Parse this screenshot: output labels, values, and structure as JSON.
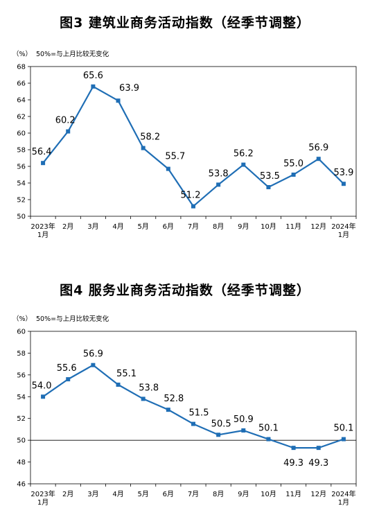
{
  "chart_data": [
    {
      "type": "line",
      "title": "图3  建筑业商务活动指数（经季节调整）",
      "unit": "（%）",
      "note": "50%=与上月比较无变化",
      "categories": [
        [
          "2023年",
          "1月"
        ],
        [
          "2月"
        ],
        [
          "3月"
        ],
        [
          "4月"
        ],
        [
          "5月"
        ],
        [
          "6月"
        ],
        [
          "7月"
        ],
        [
          "8月"
        ],
        [
          "9月"
        ],
        [
          "10月"
        ],
        [
          "11月"
        ],
        [
          "12月"
        ],
        [
          "2024年",
          "1月"
        ]
      ],
      "series": [
        {
          "values": [
            56.4,
            60.2,
            65.6,
            63.9,
            58.2,
            55.7,
            51.2,
            53.8,
            56.2,
            53.5,
            55.0,
            56.9,
            53.9
          ],
          "labels": [
            "56.4",
            "60.2",
            "65.6",
            "63.9",
            "58.2",
            "55.7",
            "51.2",
            "53.8",
            "56.2",
            "53.5",
            "55.0",
            "56.9",
            "53.9"
          ]
        }
      ],
      "ylim": [
        50,
        68
      ],
      "yticks": [
        "50",
        "52",
        "54",
        "56",
        "58",
        "60",
        "62",
        "64",
        "66",
        "68"
      ],
      "reference_line": null,
      "line_color": "#1f6eb5"
    },
    {
      "type": "line",
      "title": "图4  服务业商务活动指数（经季节调整）",
      "unit": "（%）",
      "note": "50%=与上月比较无变化",
      "categories": [
        [
          "2023年",
          "1月"
        ],
        [
          "2月"
        ],
        [
          "3月"
        ],
        [
          "4月"
        ],
        [
          "5月"
        ],
        [
          "6月"
        ],
        [
          "7月"
        ],
        [
          "8月"
        ],
        [
          "9月"
        ],
        [
          "10月"
        ],
        [
          "11月"
        ],
        [
          "12月"
        ],
        [
          "2024年",
          "1月"
        ]
      ],
      "series": [
        {
          "values": [
            54.0,
            55.6,
            56.9,
            55.1,
            53.8,
            52.8,
            51.5,
            50.5,
            50.9,
            50.1,
            49.3,
            49.3,
            50.1
          ],
          "labels": [
            "54.0",
            "55.6",
            "56.9",
            "55.1",
            "53.8",
            "52.8",
            "51.5",
            "50.5",
            "50.9",
            "50.1",
            "49.3",
            "49.3",
            "50.1"
          ]
        }
      ],
      "ylim": [
        46,
        60
      ],
      "yticks": [
        "46",
        "48",
        "50",
        "52",
        "54",
        "56",
        "58",
        "60"
      ],
      "reference_line": 50,
      "line_color": "#1f6eb5"
    }
  ]
}
